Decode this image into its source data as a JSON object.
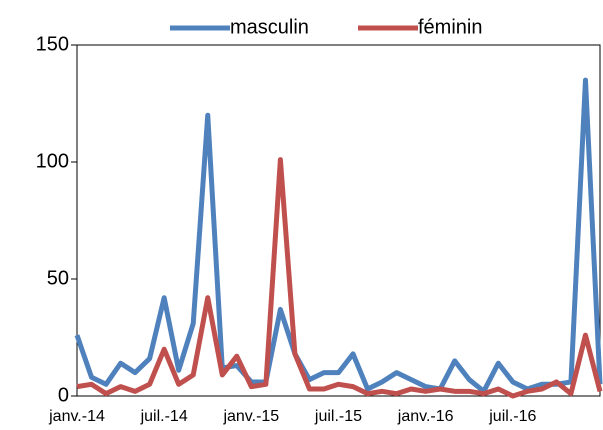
{
  "chart_data": {
    "type": "line",
    "categories": [
      "janv.-14",
      null,
      null,
      null,
      null,
      null,
      "juil.-14",
      null,
      null,
      null,
      null,
      null,
      "janv.-15",
      null,
      null,
      null,
      null,
      null,
      "juil.-15",
      null,
      null,
      null,
      null,
      null,
      "janv.-16",
      null,
      null,
      null,
      null,
      null,
      "juil.-16",
      null,
      null,
      null,
      null,
      null,
      null
    ],
    "series": [
      {
        "name": "masculin",
        "color": "#4f81bd",
        "values": [
          26,
          8,
          5,
          14,
          10,
          16,
          42,
          11,
          31,
          120,
          12,
          13,
          6,
          6,
          37,
          18,
          7,
          10,
          10,
          18,
          3,
          6,
          10,
          7,
          4,
          3,
          15,
          7,
          2,
          14,
          6,
          3,
          5,
          5,
          6,
          135,
          5
        ]
      },
      {
        "name": "féminin",
        "color": "#c0504d",
        "values": [
          4,
          5,
          1,
          4,
          2,
          5,
          20,
          5,
          9,
          42,
          9,
          17,
          4,
          5,
          101,
          18,
          3,
          3,
          5,
          4,
          1,
          2,
          1,
          3,
          2,
          3,
          2,
          2,
          1,
          3,
          0,
          2,
          3,
          6,
          1,
          26,
          2
        ]
      }
    ],
    "ylim": [
      0,
      150
    ],
    "yticks": [
      0,
      50,
      100,
      150
    ],
    "legend": "top"
  }
}
